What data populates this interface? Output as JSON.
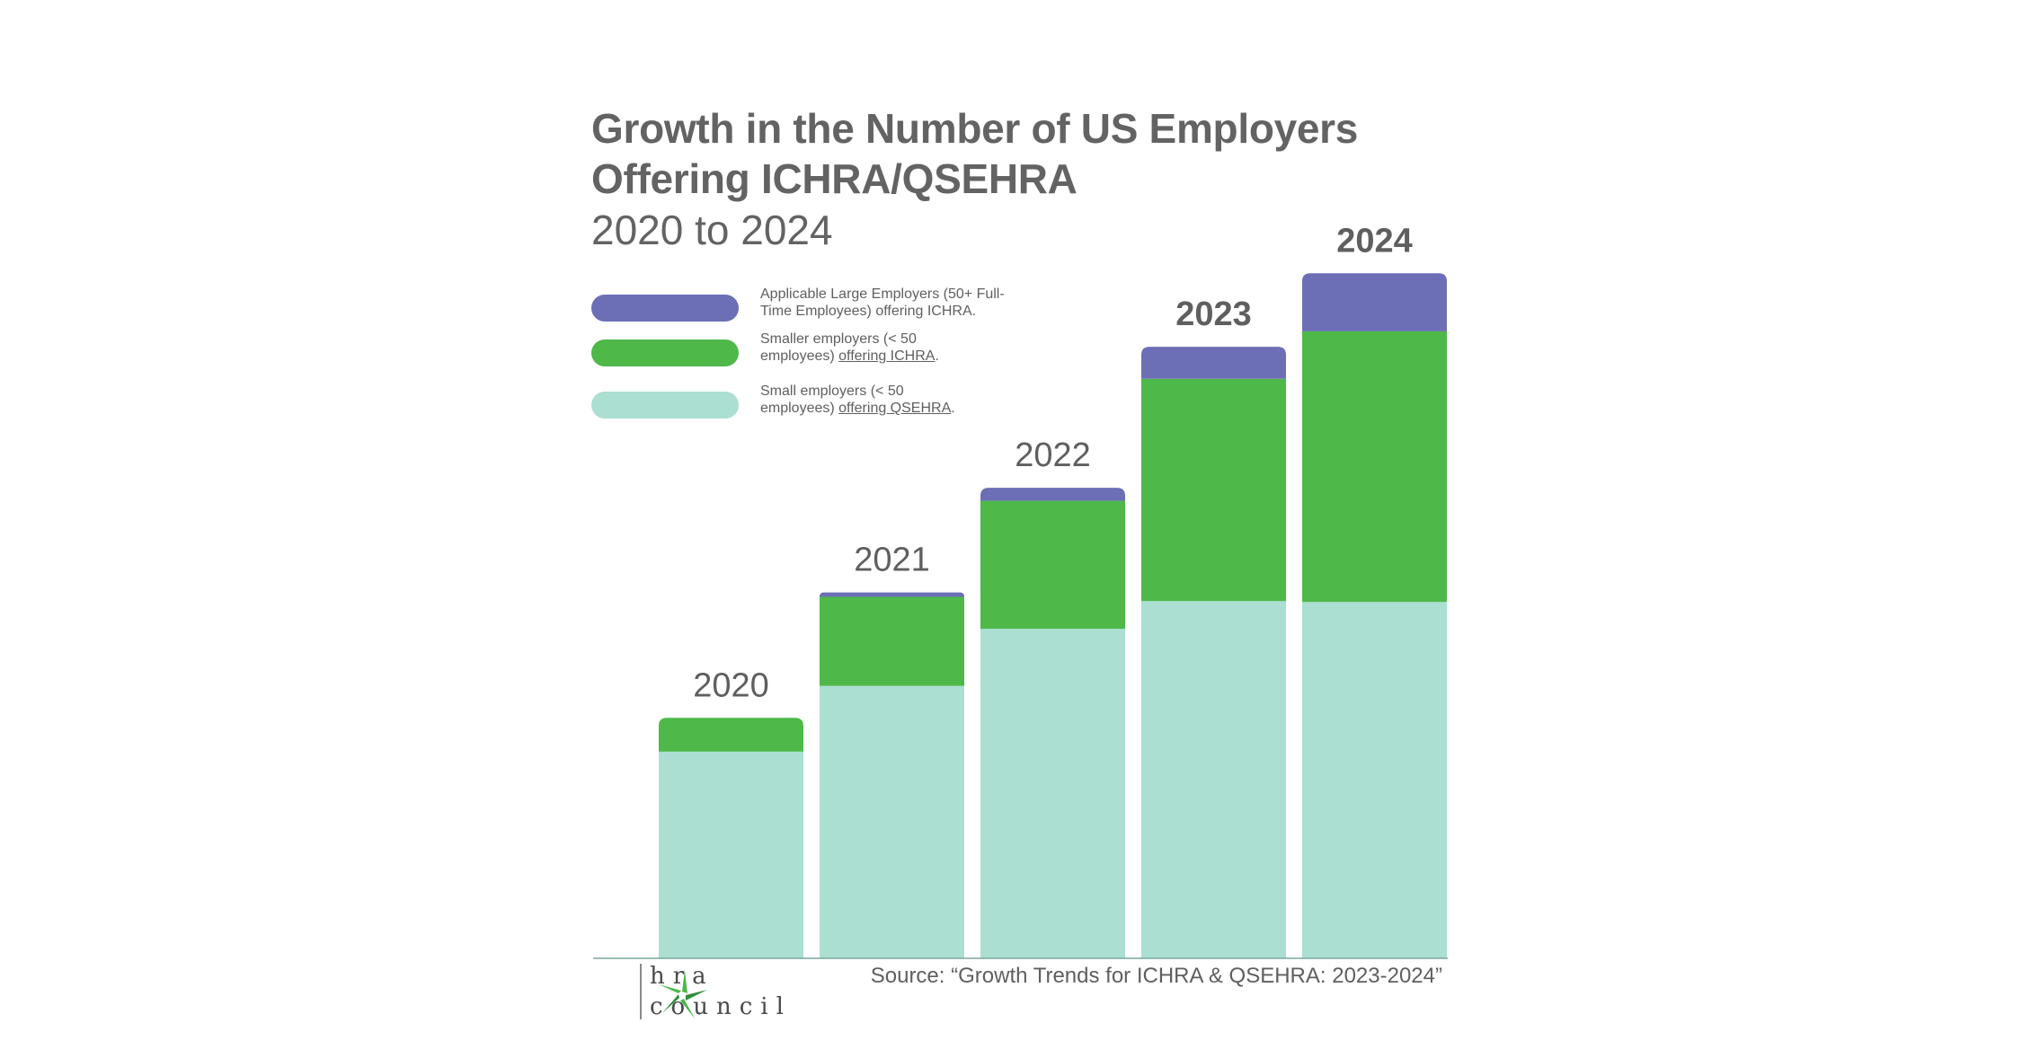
{
  "chart_data": {
    "type": "bar",
    "stacked": true,
    "title_lines": [
      "Growth in the Number of US Employers",
      "Offering ICHRA/QSEHRA"
    ],
    "subtitle": "2020 to 2024",
    "categories": [
      "2020",
      "2021",
      "2022",
      "2023",
      "2024"
    ],
    "series": [
      {
        "name": "Small employers (< 50 employees) offering QSEHRA.",
        "color": "#aadfd2",
        "values": [
          2.39,
          3.15,
          3.81,
          4.13,
          4.12
        ]
      },
      {
        "name": "Smaller employers (< 50 employees) offering ICHRA.",
        "color": "#4eb849",
        "values": [
          0.39,
          1.03,
          1.48,
          2.57,
          3.13
        ]
      },
      {
        "name": "Applicable Large Employers (50+ Full-Time Employees) offering ICHRA.",
        "color": "#6c6fb5",
        "values": [
          0.0,
          0.05,
          0.15,
          0.37,
          0.67
        ]
      }
    ],
    "legend_position": "top-left",
    "grid": false,
    "axis_labels_shown": false
  },
  "legend": [
    {
      "color": "#6c6fb5",
      "line1": "Applicable Large Employers (50+ Full-",
      "line2_plain": "Time Employees) offering ICHRA.",
      "line2_underlined": "",
      "line2_tail": ""
    },
    {
      "color": "#4eb849",
      "line1": "Smaller employers (< 50",
      "line2_plain": "employees) ",
      "line2_underlined": "offering ICHRA",
      "line2_tail": "."
    },
    {
      "color": "#aadfd2",
      "line1": "Small employers (< 50",
      "line2_plain": "employees) ",
      "line2_underlined": "offering QSEHRA",
      "line2_tail": "."
    }
  ],
  "source": "Source: “Growth Trends for ICHRA & QSEHRA: 2023-2024”",
  "logo": {
    "line1": "hra",
    "line2": "council"
  }
}
